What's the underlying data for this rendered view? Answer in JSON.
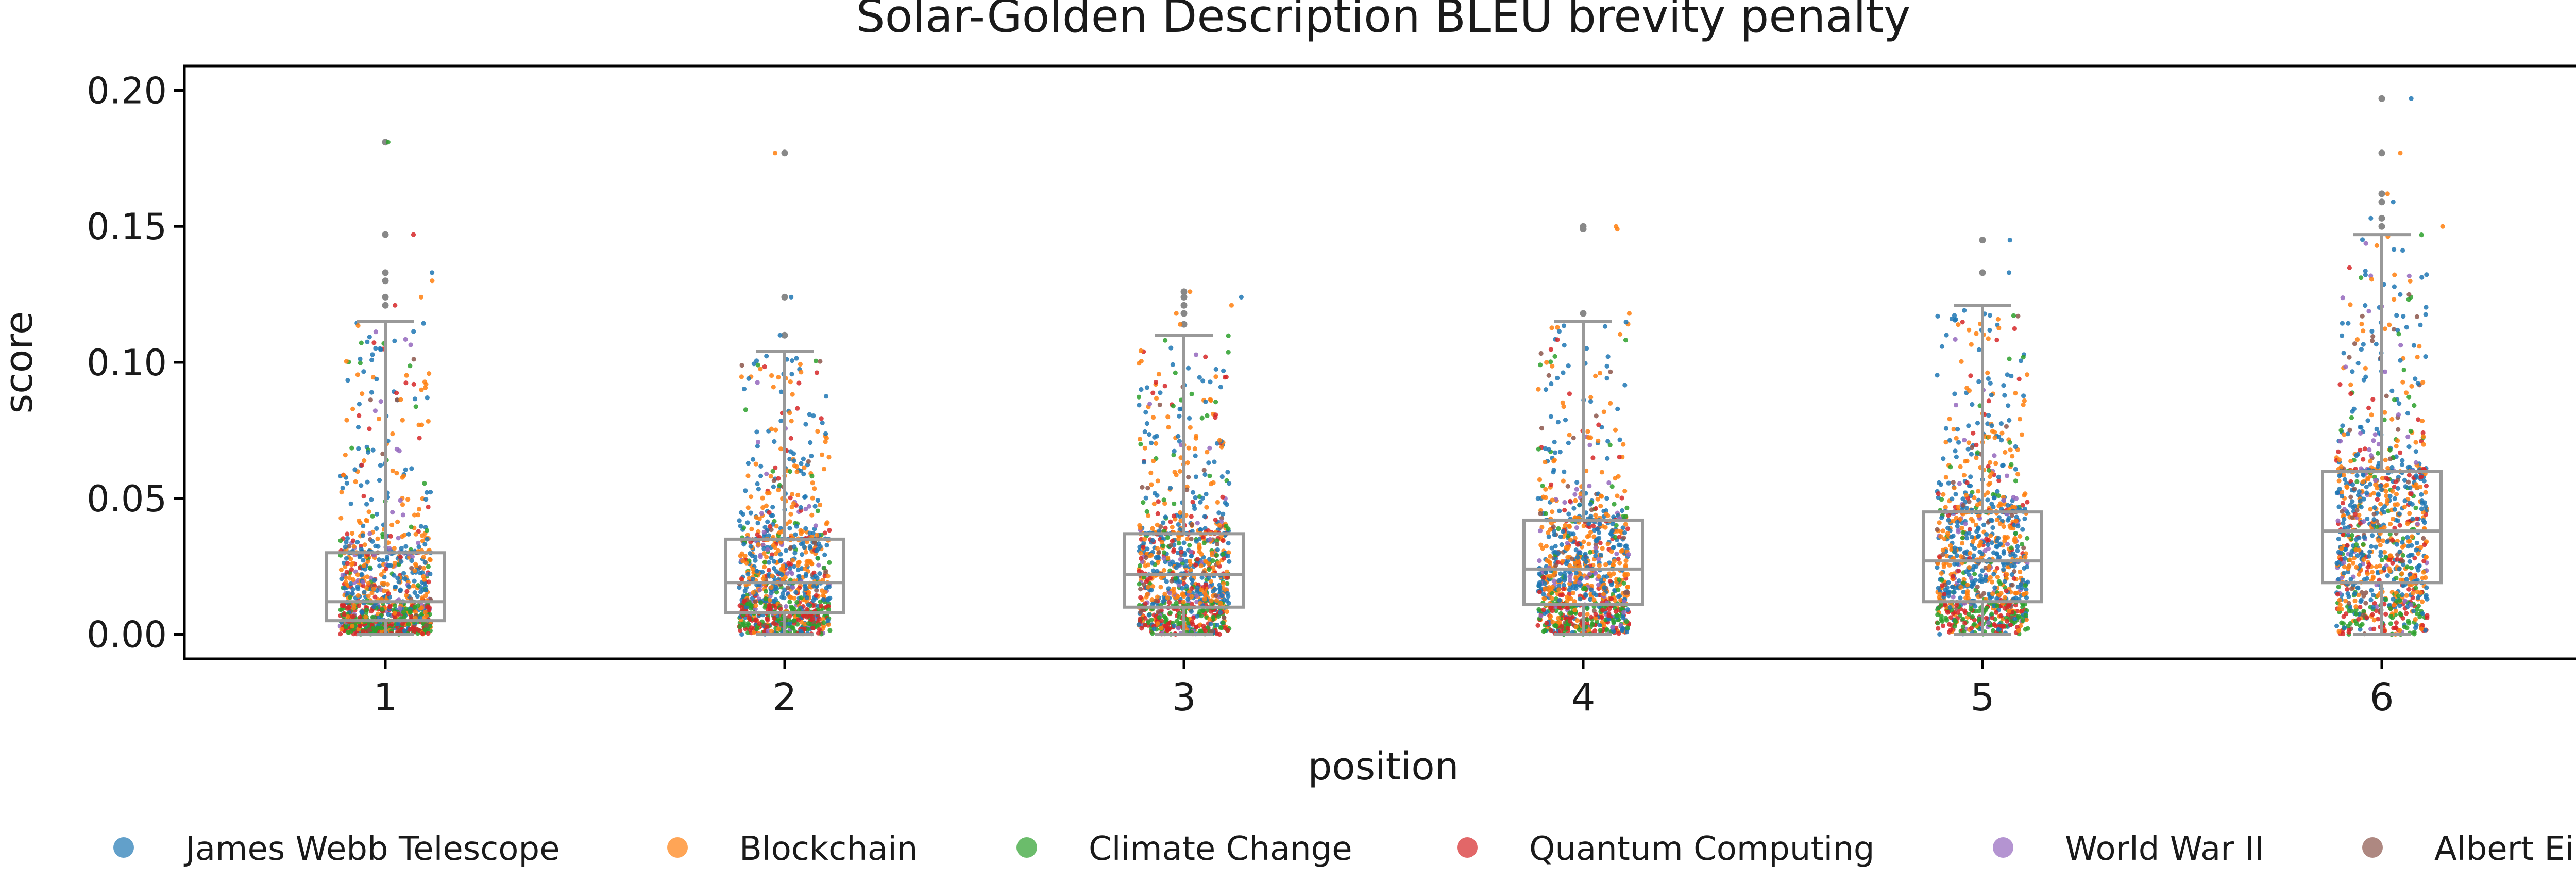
{
  "chart_data": {
    "type": "scatter",
    "subtype": "strip plot with box plot overlay",
    "title": "Solar-Golden Description BLEU brevity penalty",
    "xlabel": "position",
    "ylabel": "score",
    "categories": [
      "1",
      "2",
      "3",
      "4",
      "5",
      "6"
    ],
    "ylim": [
      -0.009,
      0.209
    ],
    "yticks": [
      "0.00",
      "0.05",
      "0.10",
      "0.15",
      "0.20"
    ],
    "grid": false,
    "legend_placement": "bottom, below the x-axis",
    "box_color": "#999999",
    "boxes": [
      {
        "position": "1",
        "whisker_low": 0.0,
        "q1": 0.005,
        "median": 0.012,
        "q3": 0.03,
        "whisker_high": 0.115
      },
      {
        "position": "2",
        "whisker_low": 0.0,
        "q1": 0.008,
        "median": 0.019,
        "q3": 0.035,
        "whisker_high": 0.104
      },
      {
        "position": "3",
        "whisker_low": 0.0,
        "q1": 0.01,
        "median": 0.022,
        "q3": 0.037,
        "whisker_high": 0.11
      },
      {
        "position": "4",
        "whisker_low": 0.0,
        "q1": 0.011,
        "median": 0.024,
        "q3": 0.042,
        "whisker_high": 0.115
      },
      {
        "position": "5",
        "whisker_low": 0.0,
        "q1": 0.012,
        "median": 0.027,
        "q3": 0.045,
        "whisker_high": 0.121
      },
      {
        "position": "6",
        "whisker_low": 0.0,
        "q1": 0.019,
        "median": 0.038,
        "q3": 0.06,
        "whisker_high": 0.147
      }
    ],
    "outliers": [
      {
        "position": "1",
        "values": [
          0.181,
          0.147,
          0.133,
          0.13,
          0.124,
          0.121
        ]
      },
      {
        "position": "2",
        "values": [
          0.177,
          0.124,
          0.11
        ]
      },
      {
        "position": "3",
        "values": [
          0.126,
          0.124,
          0.121,
          0.118,
          0.114
        ]
      },
      {
        "position": "4",
        "values": [
          0.15,
          0.149,
          0.118
        ]
      },
      {
        "position": "5",
        "values": [
          0.145,
          0.133
        ]
      },
      {
        "position": "6",
        "values": [
          0.197,
          0.177,
          0.162,
          0.159,
          0.153,
          0.15
        ]
      }
    ],
    "series": [
      {
        "name": "James Webb Telescope",
        "color": "#1f77b4"
      },
      {
        "name": "Blockchain",
        "color": "#ff7f0e"
      },
      {
        "name": "Climate Change",
        "color": "#2ca02c"
      },
      {
        "name": "Quantum Computing",
        "color": "#d62728"
      },
      {
        "name": "World War II",
        "color": "#9467bd"
      },
      {
        "name": "Albert Einstein",
        "color": "#8c564b"
      }
    ]
  }
}
